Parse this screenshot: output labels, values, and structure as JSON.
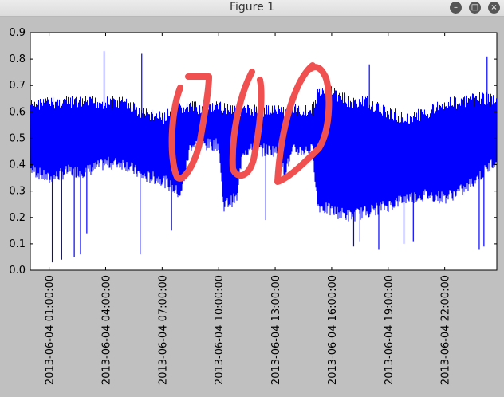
{
  "window": {
    "title": "Figure 1",
    "buttons": {
      "minimize": "–",
      "maximize": "□",
      "close": "×"
    }
  },
  "chart_data": {
    "type": "line",
    "title": "",
    "xlabel": "",
    "ylabel": "",
    "color": "#0000ff",
    "annotation_color": "#f05050",
    "ylim": [
      0.0,
      0.9
    ],
    "xlim": [
      "2013-06-04 00:00:00",
      "2013-06-05 00:46:00"
    ],
    "yticks": [
      "0.0",
      "0.1",
      "0.2",
      "0.3",
      "0.4",
      "0.5",
      "0.6",
      "0.7",
      "0.8",
      "0.9"
    ],
    "xticks": [
      "2013-06-04 01:00:00",
      "2013-06-04 04:00:00",
      "2013-06-04 07:00:00",
      "2013-06-04 10:00:00",
      "2013-06-04 13:00:00",
      "2013-06-04 16:00:00",
      "2013-06-04 19:00:00",
      "2013-06-04 22:00:00"
    ],
    "envelope": [
      {
        "time": "2013-06-04 00:00:00",
        "high": 0.65,
        "low": 0.36
      },
      {
        "time": "2013-06-04 01:00:00",
        "high": 0.66,
        "low": 0.32
      },
      {
        "time": "2013-06-04 02:00:00",
        "high": 0.66,
        "low": 0.35
      },
      {
        "time": "2013-06-04 03:00:00",
        "high": 0.66,
        "low": 0.35
      },
      {
        "time": "2013-06-04 04:00:00",
        "high": 0.66,
        "low": 0.38
      },
      {
        "time": "2013-06-04 05:00:00",
        "high": 0.66,
        "low": 0.38
      },
      {
        "time": "2013-06-04 06:00:00",
        "high": 0.62,
        "low": 0.33
      },
      {
        "time": "2013-06-04 07:00:00",
        "high": 0.6,
        "low": 0.32
      },
      {
        "time": "2013-06-04 08:00:00",
        "high": 0.64,
        "low": 0.26
      },
      {
        "time": "2013-06-04 08:30:00",
        "high": 0.64,
        "low": 0.45
      },
      {
        "time": "2013-06-04 10:00:00",
        "high": 0.64,
        "low": 0.45
      },
      {
        "time": "2013-06-04 10:15:00",
        "high": 0.64,
        "low": 0.22
      },
      {
        "time": "2013-06-04 11:00:00",
        "high": 0.64,
        "low": 0.25
      },
      {
        "time": "2013-06-04 11:15:00",
        "high": 0.63,
        "low": 0.43
      },
      {
        "time": "2013-06-04 13:00:00",
        "high": 0.63,
        "low": 0.43
      },
      {
        "time": "2013-06-04 13:30:00",
        "high": 0.63,
        "low": 0.35
      },
      {
        "time": "2013-06-04 14:00:00",
        "high": 0.63,
        "low": 0.43
      },
      {
        "time": "2013-06-04 15:00:00",
        "high": 0.63,
        "low": 0.43
      },
      {
        "time": "2013-06-04 15:15:00",
        "high": 0.7,
        "low": 0.22
      },
      {
        "time": "2013-06-04 16:00:00",
        "high": 0.7,
        "low": 0.2
      },
      {
        "time": "2013-06-04 17:00:00",
        "high": 0.66,
        "low": 0.18
      },
      {
        "time": "2013-06-04 18:00:00",
        "high": 0.66,
        "low": 0.2
      },
      {
        "time": "2013-06-04 19:00:00",
        "high": 0.62,
        "low": 0.22
      },
      {
        "time": "2013-06-04 20:00:00",
        "high": 0.6,
        "low": 0.25
      },
      {
        "time": "2013-06-04 21:00:00",
        "high": 0.62,
        "low": 0.26
      },
      {
        "time": "2013-06-04 22:00:00",
        "high": 0.66,
        "low": 0.25
      },
      {
        "time": "2013-06-04 23:00:00",
        "high": 0.66,
        "low": 0.28
      },
      {
        "time": "2013-06-05 00:00:00",
        "high": 0.68,
        "low": 0.34
      },
      {
        "time": "2013-06-05 00:46:00",
        "high": 0.66,
        "low": 0.4
      }
    ],
    "spikes": [
      {
        "time": "2013-06-04 01:10:00",
        "value": 0.03
      },
      {
        "time": "2013-06-04 01:40:00",
        "value": 0.04
      },
      {
        "time": "2013-06-04 02:20:00",
        "value": 0.05
      },
      {
        "time": "2013-06-04 02:40:00",
        "value": 0.06
      },
      {
        "time": "2013-06-04 03:00:00",
        "value": 0.14
      },
      {
        "time": "2013-06-04 03:55:00",
        "value": 0.83
      },
      {
        "time": "2013-06-04 05:50:00",
        "value": 0.06
      },
      {
        "time": "2013-06-04 05:55:00",
        "value": 0.82
      },
      {
        "time": "2013-06-04 07:30:00",
        "value": 0.15
      },
      {
        "time": "2013-06-04 12:30:00",
        "value": 0.19
      },
      {
        "time": "2013-06-04 15:45:00",
        "value": 0.73
      },
      {
        "time": "2013-06-04 17:10:00",
        "value": 0.09
      },
      {
        "time": "2013-06-04 17:30:00",
        "value": 0.11
      },
      {
        "time": "2013-06-04 18:00:00",
        "value": 0.78
      },
      {
        "time": "2013-06-04 18:30:00",
        "value": 0.08
      },
      {
        "time": "2013-06-04 19:50:00",
        "value": 0.1
      },
      {
        "time": "2013-06-04 20:20:00",
        "value": 0.11
      },
      {
        "time": "2013-06-04 23:50:00",
        "value": 0.08
      },
      {
        "time": "2013-06-05 00:05:00",
        "value": 0.09
      },
      {
        "time": "2013-06-05 00:15:00",
        "value": 0.81
      }
    ]
  }
}
